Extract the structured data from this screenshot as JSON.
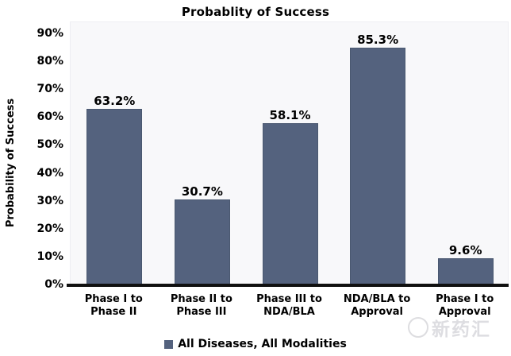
{
  "page": {
    "background": "#ffffff"
  },
  "chart_data": {
    "type": "bar",
    "title": "Probablity of Success",
    "ylabel": "Probability of Success",
    "xlabel": "",
    "categories": [
      "Phase I to\nPhase II",
      "Phase II to\nPhase III",
      "Phase III to\nNDA/BLA",
      "NDA/BLA to\nApproval",
      "Phase I to\nApproval"
    ],
    "values": [
      63.2,
      30.7,
      58.1,
      85.3,
      9.6
    ],
    "value_labels": [
      "63.2%",
      "30.7%",
      "58.1%",
      "85.3%",
      "9.6%"
    ],
    "series": [
      {
        "name": "All Diseases, All Modalities",
        "values": [
          63.2,
          30.7,
          58.1,
          85.3,
          9.6
        ]
      }
    ],
    "ylim": [
      0,
      90
    ],
    "ytick_labels": [
      "0%",
      "10%",
      "20%",
      "30%",
      "40%",
      "50%",
      "60%",
      "70%",
      "80%",
      "90%"
    ],
    "grid": false,
    "legend_position": "bottom",
    "bar_color": "#54627E",
    "plot_background": "#f8f8fa",
    "axis_line_color": "#101010"
  },
  "legend": {
    "label": "All Diseases, All Modalities",
    "swatch_color": "#54627E"
  },
  "watermark": {
    "text": "新药汇",
    "icon": "smiley-circle",
    "color": "#c3c3ca"
  }
}
